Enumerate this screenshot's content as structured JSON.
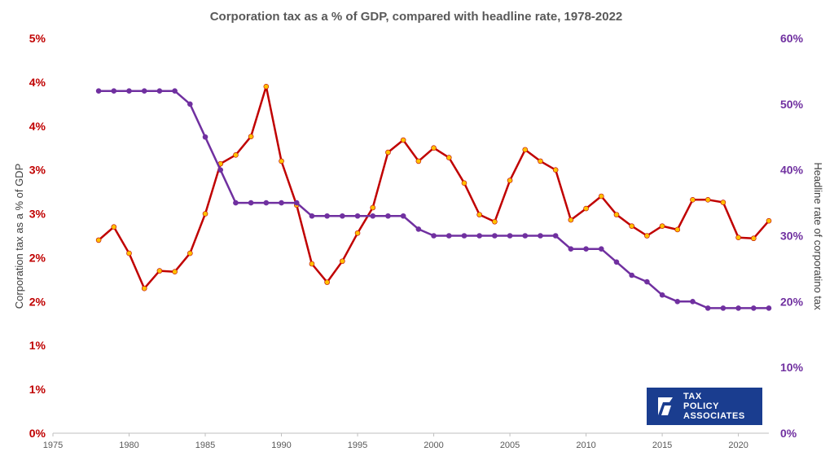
{
  "chart_data": {
    "type": "line",
    "title": "Corporation tax as a % of GDP, compared with headline rate, 1978-2022",
    "ylabel_left": "Corporation tax as a % of GDP",
    "ylabel_right": "Headline rate of corporatino tax",
    "x_ticks": [
      "1975",
      "1980",
      "1985",
      "1990",
      "1995",
      "2000",
      "2005",
      "2010",
      "2015",
      "2020"
    ],
    "x_range": [
      1975,
      2022
    ],
    "y_left_range": [
      0,
      4.5
    ],
    "y_left_tick_labels": [
      "0%",
      "1%",
      "1%",
      "2%",
      "2%",
      "3%",
      "3%",
      "4%",
      "4%",
      "5%"
    ],
    "y_right_range": [
      0,
      60
    ],
    "y_right_tick_labels": [
      "0%",
      "10%",
      "20%",
      "30%",
      "40%",
      "50%",
      "60%"
    ],
    "grid": false,
    "series": [
      {
        "axis": "left",
        "color": "#c00000",
        "marker_color": "#ffc000",
        "x": [
          1978,
          1979,
          1980,
          1981,
          1982,
          1983,
          1984,
          1985,
          1986,
          1987,
          1988,
          1989,
          1990,
          1991,
          1992,
          1993,
          1994,
          1995,
          1996,
          1997,
          1998,
          1999,
          2000,
          2001,
          2002,
          2003,
          2004,
          2005,
          2006,
          2007,
          2008,
          2009,
          2010,
          2011,
          2012,
          2013,
          2014,
          2015,
          2016,
          2017,
          2018,
          2019,
          2020,
          2021,
          2022
        ],
        "values": [
          2.2,
          2.35,
          2.05,
          1.65,
          1.85,
          1.84,
          2.05,
          2.5,
          3.07,
          3.17,
          3.38,
          3.95,
          3.1,
          2.6,
          1.93,
          1.72,
          1.96,
          2.28,
          2.57,
          3.2,
          3.34,
          3.1,
          3.25,
          3.14,
          2.85,
          2.49,
          2.41,
          2.88,
          3.23,
          3.1,
          3.0,
          2.43,
          2.56,
          2.7,
          2.49,
          2.36,
          2.25,
          2.36,
          2.32,
          2.66,
          2.66,
          2.63,
          2.23,
          2.22,
          2.42
        ]
      },
      {
        "axis": "right",
        "color": "#7030a0",
        "marker_color": "#7030a0",
        "x": [
          1978,
          1979,
          1980,
          1981,
          1982,
          1983,
          1984,
          1985,
          1986,
          1987,
          1988,
          1989,
          1990,
          1991,
          1992,
          1993,
          1994,
          1995,
          1996,
          1997,
          1998,
          1999,
          2000,
          2001,
          2002,
          2003,
          2004,
          2005,
          2006,
          2007,
          2008,
          2009,
          2010,
          2011,
          2012,
          2013,
          2014,
          2015,
          2016,
          2017,
          2018,
          2019,
          2020,
          2021,
          2022
        ],
        "values": [
          52,
          52,
          52,
          52,
          52,
          52,
          50,
          45,
          40,
          35,
          35,
          35,
          35,
          35,
          33,
          33,
          33,
          33,
          33,
          33,
          33,
          31,
          30,
          30,
          30,
          30,
          30,
          30,
          30,
          30,
          30,
          28,
          28,
          28,
          26,
          24,
          23,
          21,
          20,
          20,
          19,
          19,
          19,
          19,
          19
        ]
      }
    ]
  },
  "logo": {
    "line1": "TAX",
    "line2": "POLICY",
    "line3": "ASSOCIATES",
    "background": "#1a3d8f"
  }
}
